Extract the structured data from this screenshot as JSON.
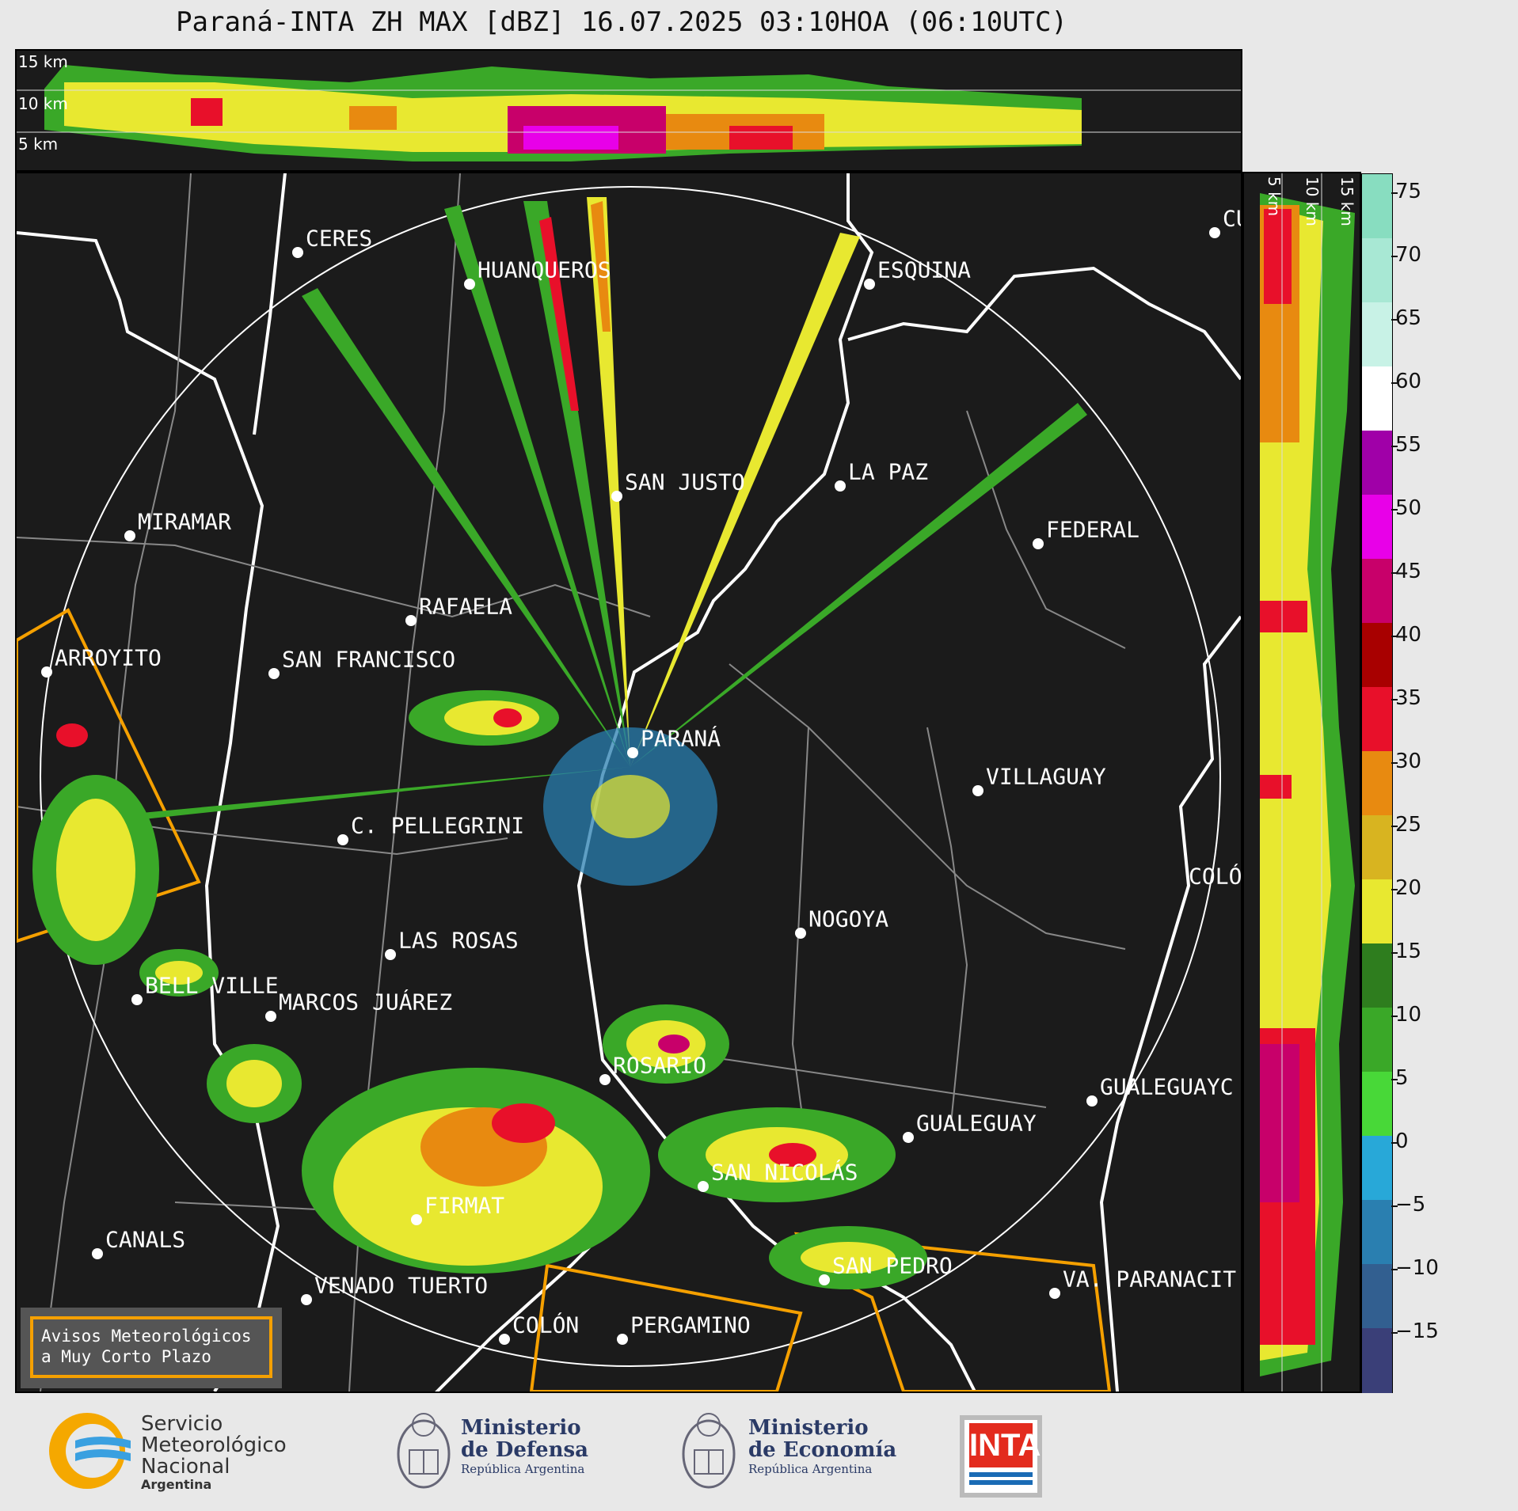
{
  "title": "Paraná-INTA ZH MAX [dBZ] 16.07.2025 03:10HOA (06:10UTC)",
  "top_strip": {
    "altitudes": [
      "15 km",
      "10 km",
      "5 km"
    ]
  },
  "side_strip": {
    "altitudes": [
      "5 km",
      "10 km",
      "15 km"
    ]
  },
  "colorbar": {
    "unit": "dBZ",
    "ticks": [
      "75",
      "70",
      "65",
      "60",
      "55",
      "50",
      "45",
      "40",
      "35",
      "30",
      "25",
      "20",
      "15",
      "10",
      "5",
      "0",
      "−5",
      "−10",
      "−15"
    ],
    "colors": [
      "#88ddc0",
      "#a8e8d4",
      "#c8f2e6",
      "#ffffff",
      "#a000a8",
      "#e800e8",
      "#c8006a",
      "#a80000",
      "#e8102a",
      "#e88a10",
      "#d8b420",
      "#e8e830",
      "#2e7d1e",
      "#3aa828",
      "#48d838",
      "#28a8d8",
      "#2a7fb0",
      "#325f90",
      "#3a3f78"
    ]
  },
  "cities": [
    {
      "name": "CERES"
    },
    {
      "name": "HUANQUEROS"
    },
    {
      "name": "ESQUINA"
    },
    {
      "name": "CU"
    },
    {
      "name": "SAN JUSTO"
    },
    {
      "name": "LA PAZ"
    },
    {
      "name": "MIRAMAR"
    },
    {
      "name": "FEDERAL"
    },
    {
      "name": "RAFAELA"
    },
    {
      "name": "ARROYITO"
    },
    {
      "name": "SAN FRANCISCO"
    },
    {
      "name": "PARANÁ"
    },
    {
      "name": "VILLAGUAY"
    },
    {
      "name": "C. PELLEGRINI"
    },
    {
      "name": "COLÓ"
    },
    {
      "name": "NOGOYA"
    },
    {
      "name": "LAS ROSAS"
    },
    {
      "name": "BELL VILLE"
    },
    {
      "name": "MARCOS JUÁREZ"
    },
    {
      "name": "ROSARIO"
    },
    {
      "name": "GUALEGUAYC"
    },
    {
      "name": "GUALEGUAY"
    },
    {
      "name": "SAN NICOLÁS"
    },
    {
      "name": "FIRMAT"
    },
    {
      "name": "CANALS"
    },
    {
      "name": "SAN PEDRO"
    },
    {
      "name": "VENADO TUERTO"
    },
    {
      "name": "VA. PARANACIT"
    },
    {
      "name": "COLÓN"
    },
    {
      "name": "PERGAMINO"
    }
  ],
  "warning_box": {
    "line1": "Avisos Meteorológicos",
    "line2": "a Muy Corto Plazo"
  },
  "logos": {
    "smn": {
      "line1": "Servicio",
      "line2": "Meteorológico",
      "line3": "Nacional",
      "line4": "Argentina"
    },
    "defensa": {
      "line1": "Ministerio",
      "line2": "de Defensa",
      "line3": "República Argentina"
    },
    "economia": {
      "line1": "Ministerio",
      "line2": "de Economía",
      "line3": "República Argentina"
    },
    "inta": {
      "text": "INTA"
    }
  }
}
